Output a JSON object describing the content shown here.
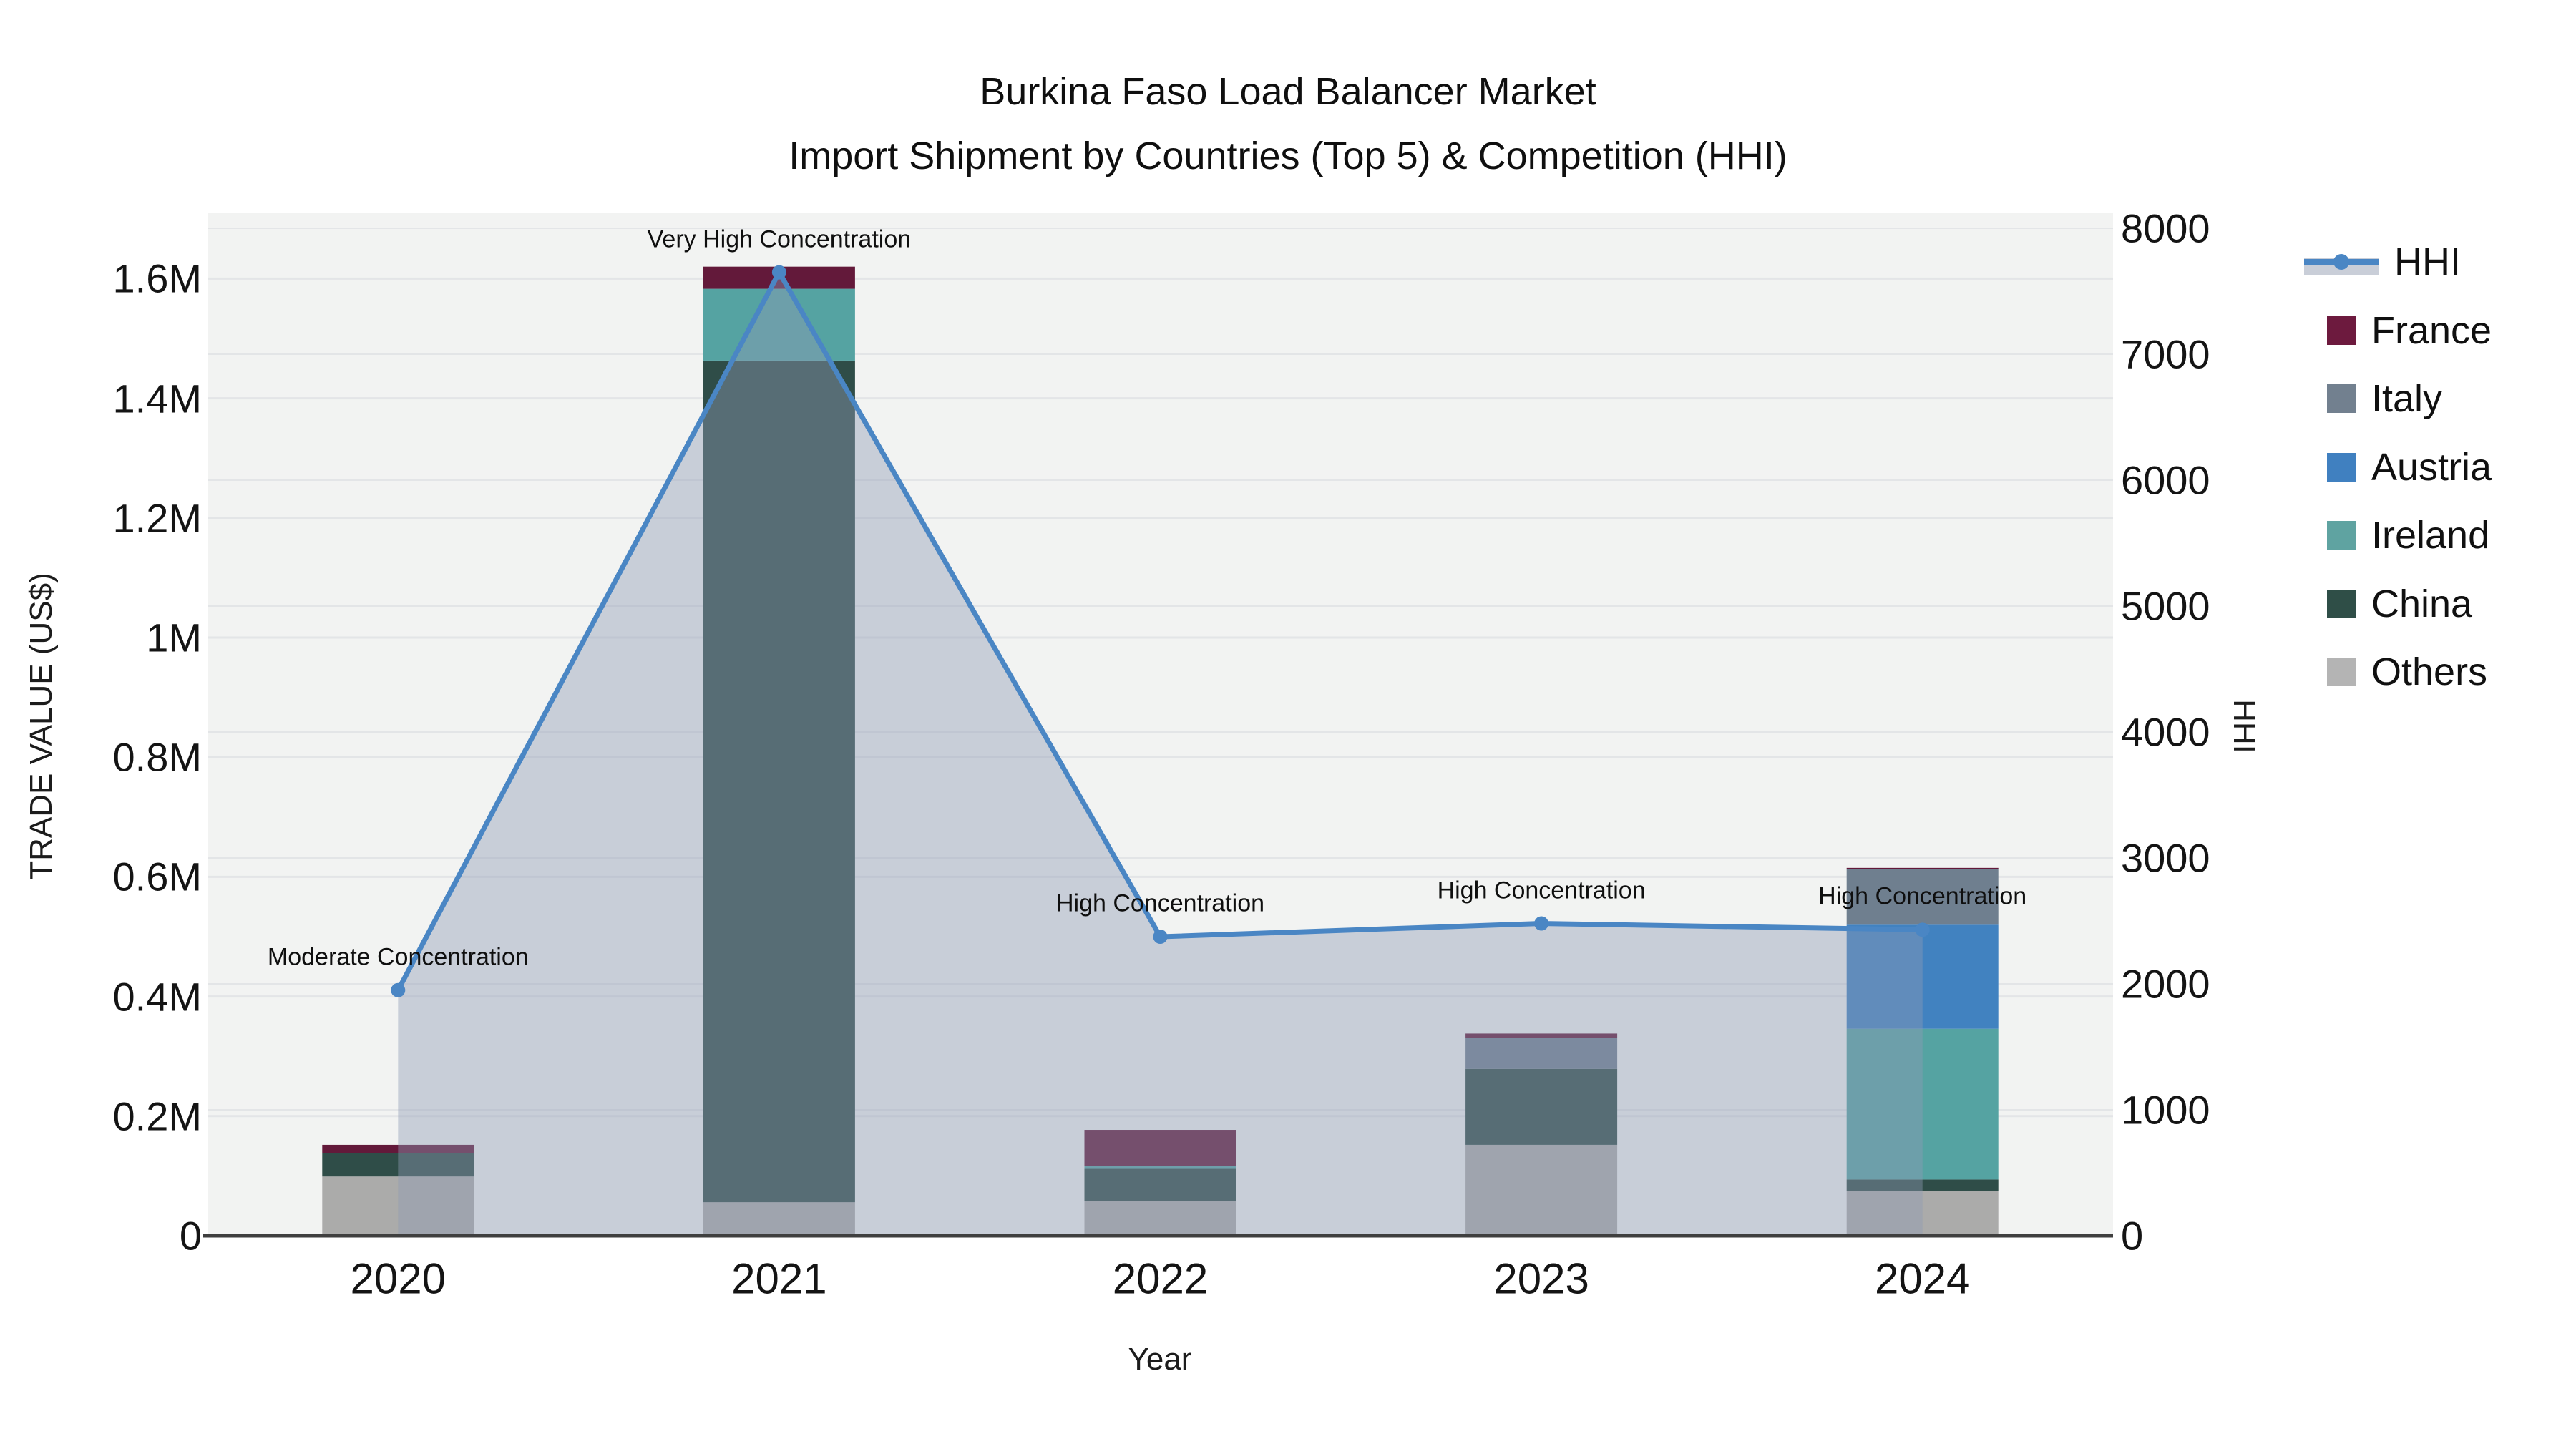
{
  "title": {
    "line1": "Burkina Faso Load Balancer Market",
    "line2": "Import Shipment by Countries (Top 5) & Competition (HHI)"
  },
  "axes": {
    "x": {
      "title": "Year"
    },
    "left": {
      "title": "TRADE VALUE (US$)"
    },
    "right": {
      "title": "HHI"
    }
  },
  "legend": {
    "items": [
      {
        "label": "HHI",
        "kind": "line",
        "color": "#4a86c4",
        "band_color": "#c9ced8"
      },
      {
        "label": "France",
        "kind": "swatch",
        "color": "#6d1a3e"
      },
      {
        "label": "Italy",
        "kind": "swatch",
        "color": "#72808f"
      },
      {
        "label": "Austria",
        "kind": "swatch",
        "color": "#4080c0"
      },
      {
        "label": "Ireland",
        "kind": "swatch",
        "color": "#5fa3a1"
      },
      {
        "label": "China",
        "kind": "swatch",
        "color": "#2f4e47"
      },
      {
        "label": "Others",
        "kind": "swatch",
        "color": "#b4b4b4"
      }
    ]
  },
  "chart_data": {
    "type": "combo: stacked-bar + line-area",
    "x": [
      "2020",
      "2021",
      "2022",
      "2023",
      "2024"
    ],
    "bar_unit": "US$ (millions)",
    "stack_order_bottom_to_top": [
      "Others",
      "China",
      "Ireland",
      "Austria",
      "Italy",
      "France"
    ],
    "series": [
      {
        "name": "Others",
        "color": "#ababaa",
        "values_musd": [
          0.099,
          0.056,
          0.058,
          0.152,
          0.075
        ]
      },
      {
        "name": "China",
        "color": "#2f4d48",
        "values_musd": [
          0.039,
          1.407,
          0.055,
          0.127,
          0.019
        ]
      },
      {
        "name": "Ireland",
        "color": "#55a3a2",
        "values_musd": [
          0,
          0.12,
          0.003,
          0,
          0.252
        ]
      },
      {
        "name": "Austria",
        "color": "#4182c0",
        "values_musd": [
          0,
          0,
          0,
          0,
          0.174
        ]
      },
      {
        "name": "Italy",
        "color": "#6f7f8f",
        "values_musd": [
          0,
          0,
          0,
          0.052,
          0.093
        ]
      },
      {
        "name": "France",
        "color": "#63193a",
        "values_musd": [
          0.014,
          0.037,
          0.061,
          0.007,
          0.002
        ]
      }
    ],
    "totals_musd": [
      0.152,
      1.62,
      0.177,
      0.338,
      0.615
    ],
    "hhi": {
      "name": "HHI",
      "color": "#4a86c4",
      "area_fill": "rgba(144,155,180,0.42)",
      "values": [
        1950,
        7650,
        2375,
        2480,
        2430
      ]
    },
    "annotations": [
      {
        "x": "2020",
        "text": "Moderate Concentration"
      },
      {
        "x": "2021",
        "text": "Very High Concentration"
      },
      {
        "x": "2022",
        "text": "High Concentration"
      },
      {
        "x": "2023",
        "text": "High Concentration"
      },
      {
        "x": "2024",
        "text": "High Concentration"
      }
    ],
    "left_axis": {
      "range_musd": [
        0,
        1.7
      ],
      "ticks": [
        "0",
        "0.2M",
        "0.4M",
        "0.6M",
        "0.8M",
        "1M",
        "1.2M",
        "1.4M",
        "1.6M"
      ],
      "values": [
        0,
        0.2,
        0.4,
        0.6,
        0.8,
        1.0,
        1.2,
        1.4,
        1.6
      ]
    },
    "right_axis": {
      "range": [
        0,
        8000
      ],
      "ticks": [
        "0",
        "1000",
        "2000",
        "3000",
        "4000",
        "5000",
        "6000",
        "7000",
        "8000"
      ],
      "values": [
        0,
        1000,
        2000,
        3000,
        4000,
        5000,
        6000,
        7000,
        8000
      ]
    },
    "plot_bg": "#f2f3f2",
    "grid_color": "#e3e5e7",
    "baseline_color": "#3f3f3f",
    "legend_position": "right",
    "grid": true
  }
}
